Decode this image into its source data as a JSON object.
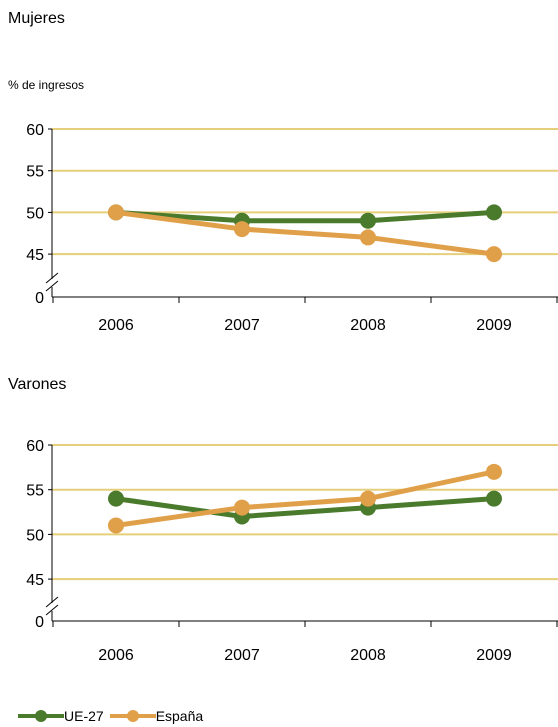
{
  "chart_data": [
    {
      "type": "line",
      "title": "Mujeres",
      "ylabel": "% de ingresos",
      "categories": [
        "2006",
        "2007",
        "2008",
        "2009"
      ],
      "y_ticks": [
        "60",
        "55",
        "50",
        "45",
        "0"
      ],
      "ylim": [
        45,
        60
      ],
      "axis_break": true,
      "grid": true,
      "series": [
        {
          "name": "UE-27",
          "values": [
            50,
            49,
            49,
            50
          ],
          "color": "#4a7a2c"
        },
        {
          "name": "España",
          "values": [
            50,
            48,
            47,
            45
          ],
          "color": "#e0a04a"
        }
      ]
    },
    {
      "type": "line",
      "title": "Varones",
      "categories": [
        "2006",
        "2007",
        "2008",
        "2009"
      ],
      "y_ticks": [
        "60",
        "55",
        "50",
        "45",
        "0"
      ],
      "ylim": [
        45,
        60
      ],
      "axis_break": true,
      "grid": true,
      "series": [
        {
          "name": "UE-27",
          "values": [
            54,
            52,
            53,
            54
          ],
          "color": "#4a7a2c"
        },
        {
          "name": "España",
          "values": [
            51,
            53,
            54,
            57
          ],
          "color": "#e0a04a"
        }
      ]
    }
  ],
  "legend": {
    "position": "bottom-left",
    "items": [
      {
        "label": "UE-27",
        "color": "#4a7a2c"
      },
      {
        "label": "España",
        "color": "#e0a04a"
      }
    ]
  },
  "colors": {
    "gridline": "#e6cf7a",
    "axis": "#000000"
  }
}
